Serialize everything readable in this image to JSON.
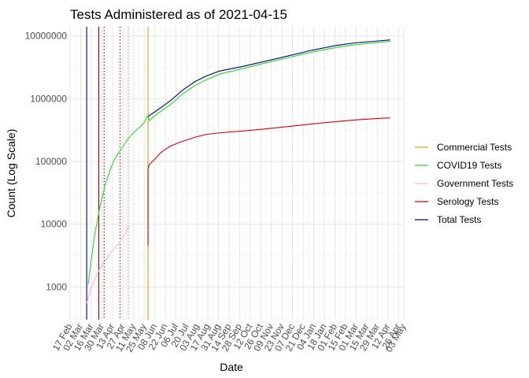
{
  "chart_data": {
    "type": "line",
    "title": "Tests Administered as of 2021-04-15",
    "xlabel": "Date",
    "ylabel": "Count (Log Scale)",
    "y_scale": "log10",
    "ylim": [
      300,
      14000000
    ],
    "xlim": [
      "2020-02-17",
      "2021-05-03"
    ],
    "y_ticks": [
      1000,
      10000,
      100000,
      1000000,
      10000000
    ],
    "y_tick_labels": [
      "1000",
      "10000",
      "100000",
      "1000000",
      "10000000"
    ],
    "x_ticks": [
      "2020-02-17",
      "2020-03-02",
      "2020-03-16",
      "2020-03-30",
      "2020-04-13",
      "2020-04-27",
      "2020-05-11",
      "2020-05-25",
      "2020-06-08",
      "2020-06-22",
      "2020-07-06",
      "2020-07-20",
      "2020-08-03",
      "2020-08-17",
      "2020-08-31",
      "2020-09-14",
      "2020-09-28",
      "2020-10-12",
      "2020-10-26",
      "2020-11-09",
      "2020-11-23",
      "2020-12-07",
      "2020-12-21",
      "2021-01-04",
      "2021-01-18",
      "2021-02-01",
      "2021-02-15",
      "2021-03-01",
      "2021-03-15",
      "2021-03-29",
      "2021-04-12",
      "2021-04-26",
      "2021-05-03"
    ],
    "x_tick_labels": [
      "17 Feb",
      "02 Mar",
      "16 Mar",
      "30 Mar",
      "13 Apr",
      "27 Apr",
      "11 May",
      "25 May",
      "08 Jun",
      "22 Jun",
      "06 Jul",
      "20 Jul",
      "03 Aug",
      "17 Aug",
      "31 Aug",
      "14 Sep",
      "28 Sep",
      "12 Oct",
      "26 Oct",
      "09 Nov",
      "23 Nov",
      "07 Dec",
      "21 Dec",
      "04 Jan",
      "18 Jan",
      "01 Feb",
      "15 Feb",
      "01 Mar",
      "15 Mar",
      "29 Mar",
      "12 Apr",
      "26 Apr",
      "03 May"
    ],
    "grid": true,
    "legend_position": "right",
    "vlines": [
      {
        "x": "2020-03-10",
        "color": "#0000CD",
        "style": "solid"
      },
      {
        "x": "2020-03-26",
        "color": "#8B0000",
        "style": "solid"
      },
      {
        "x": "2020-04-02",
        "color": "#8B0000",
        "style": "dotted"
      },
      {
        "x": "2020-04-23",
        "color": "#CC0000",
        "style": "dotted"
      },
      {
        "x": "2020-05-04",
        "color": "#FF69B4",
        "style": "dotted"
      },
      {
        "x": "2020-05-30",
        "color": "#DAA520",
        "style": "solid"
      }
    ],
    "series": [
      {
        "name": "Commercial Tests",
        "color": "#DAA520",
        "x": [
          "2020-05-30",
          "2020-05-30"
        ],
        "y": [
          300,
          600000
        ]
      },
      {
        "name": "COVID19 Tests",
        "color": "#22DD22",
        "x": [
          "2020-03-12",
          "2020-03-15",
          "2020-03-18",
          "2020-03-21",
          "2020-03-24",
          "2020-03-27",
          "2020-03-31",
          "2020-04-04",
          "2020-04-08",
          "2020-04-12",
          "2020-04-16",
          "2020-04-20",
          "2020-04-25",
          "2020-04-30",
          "2020-05-05",
          "2020-05-10",
          "2020-05-15",
          "2020-05-20",
          "2020-05-25",
          "2020-05-29",
          "2020-06-01",
          "2020-06-10",
          "2020-06-20",
          "2020-07-01",
          "2020-07-15",
          "2020-08-01",
          "2020-08-15",
          "2020-09-01",
          "2020-10-01",
          "2020-11-01",
          "2020-12-01",
          "2021-01-01",
          "2021-02-01",
          "2021-03-01",
          "2021-04-01",
          "2021-04-15"
        ],
        "y": [
          1100,
          2200,
          4000,
          7500,
          11000,
          18000,
          28000,
          45000,
          62000,
          85000,
          110000,
          130000,
          160000,
          200000,
          240000,
          280000,
          320000,
          360000,
          420000,
          520000,
          450000,
          560000,
          680000,
          850000,
          1200000,
          1650000,
          2000000,
          2450000,
          3000000,
          3700000,
          4500000,
          5500000,
          6500000,
          7300000,
          7900000,
          8200000
        ]
      },
      {
        "name": "Government Tests",
        "color": "#FFB6C1",
        "x": [
          "2020-03-10",
          "2020-03-15",
          "2020-03-20",
          "2020-03-27",
          "2020-04-03",
          "2020-04-10",
          "2020-04-17",
          "2020-04-24",
          "2020-05-01",
          "2020-05-05"
        ],
        "y": [
          550,
          900,
          1300,
          1900,
          2600,
          3400,
          4300,
          5500,
          7500,
          9500
        ]
      },
      {
        "name": "Serology Tests",
        "color": "#DD0000",
        "x": [
          "2020-05-30",
          "2020-05-30",
          "2020-06-01",
          "2020-06-05",
          "2020-06-10",
          "2020-06-15",
          "2020-06-20",
          "2020-06-25",
          "2020-07-01",
          "2020-07-10",
          "2020-07-20",
          "2020-08-01",
          "2020-08-15",
          "2020-09-01",
          "2020-10-01",
          "2020-11-01",
          "2020-12-01",
          "2021-01-01",
          "2021-02-01",
          "2021-03-01",
          "2021-04-01",
          "2021-04-15"
        ],
        "y": [
          4500,
          78000,
          90000,
          100000,
          115000,
          135000,
          150000,
          165000,
          180000,
          200000,
          220000,
          245000,
          270000,
          285000,
          305000,
          330000,
          360000,
          395000,
          430000,
          460000,
          485000,
          495000
        ]
      },
      {
        "name": "Total Tests",
        "color": "#00008B",
        "x": [
          "2020-05-30",
          "2020-06-10",
          "2020-06-20",
          "2020-07-01",
          "2020-07-15",
          "2020-08-01",
          "2020-08-15",
          "2020-09-01",
          "2020-10-01",
          "2020-11-01",
          "2020-12-01",
          "2021-01-01",
          "2021-02-01",
          "2021-03-01",
          "2021-04-01",
          "2021-04-15"
        ],
        "y": [
          520000,
          640000,
          780000,
          980000,
          1380000,
          1900000,
          2300000,
          2750000,
          3250000,
          3950000,
          4800000,
          5900000,
          7000000,
          7800000,
          8350000,
          8650000
        ]
      }
    ]
  }
}
